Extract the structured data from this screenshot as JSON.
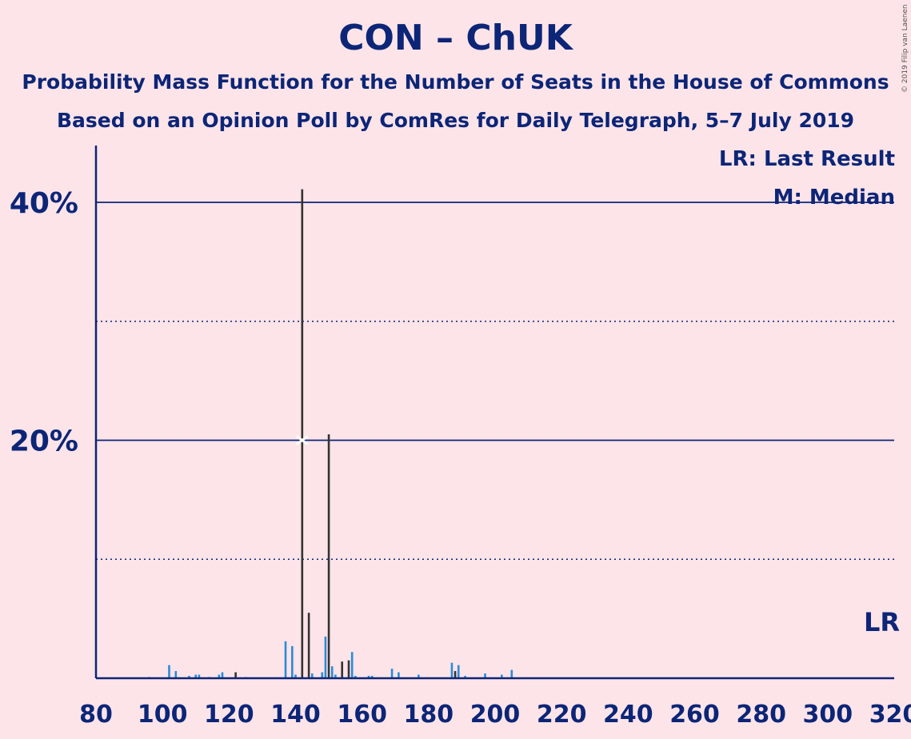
{
  "title": "CON – ChUK",
  "subtitle": "Probability Mass Function for the Number of Seats in the House of Commons",
  "subtitle2": "Based on an Opinion Poll by ComRes for Daily Telegraph, 5–7 July 2019",
  "copyright": "© 2019 Filip van Laenen",
  "legend": {
    "last_result": "LR: Last Result",
    "median": "M: Median"
  },
  "lr_marker": "LR",
  "colors": {
    "background": "#fde4e8",
    "text": "#0c2577",
    "bar_blue": "#2b8cd6",
    "bar_dark": "#333333"
  },
  "chart_data": {
    "type": "bar",
    "xlim": [
      80,
      320
    ],
    "ylim": [
      0,
      45
    ],
    "x_ticks": [
      "80",
      "100",
      "120",
      "140",
      "160",
      "180",
      "200",
      "220",
      "240",
      "260",
      "280",
      "300",
      "320"
    ],
    "y_ticks": [
      "20%",
      "40%"
    ],
    "gridlines_solid": [
      20,
      40
    ],
    "gridlines_dotted": [
      10,
      30
    ],
    "last_result_seats": 317,
    "median_seats": 142,
    "median_value": 20,
    "bars": [
      {
        "x": 96,
        "v": 0.1,
        "c": "blue"
      },
      {
        "x": 102,
        "v": 1.1,
        "c": "blue"
      },
      {
        "x": 104,
        "v": 0.6,
        "c": "blue"
      },
      {
        "x": 108,
        "v": 0.2,
        "c": "blue"
      },
      {
        "x": 110,
        "v": 0.3,
        "c": "blue"
      },
      {
        "x": 111,
        "v": 0.3,
        "c": "blue"
      },
      {
        "x": 114,
        "v": 0.1,
        "c": "blue"
      },
      {
        "x": 117,
        "v": 0.3,
        "c": "blue"
      },
      {
        "x": 118,
        "v": 0.5,
        "c": "blue"
      },
      {
        "x": 122,
        "v": 0.5,
        "c": "dark"
      },
      {
        "x": 125,
        "v": 0.1,
        "c": "blue"
      },
      {
        "x": 137,
        "v": 3.1,
        "c": "blue"
      },
      {
        "x": 139,
        "v": 2.7,
        "c": "blue"
      },
      {
        "x": 140,
        "v": 0.3,
        "c": "blue"
      },
      {
        "x": 142,
        "v": 41.1,
        "c": "dark"
      },
      {
        "x": 144,
        "v": 5.5,
        "c": "dark"
      },
      {
        "x": 145,
        "v": 0.4,
        "c": "blue"
      },
      {
        "x": 148,
        "v": 0.5,
        "c": "blue"
      },
      {
        "x": 149,
        "v": 3.5,
        "c": "blue"
      },
      {
        "x": 150,
        "v": 20.5,
        "c": "dark"
      },
      {
        "x": 151,
        "v": 1.0,
        "c": "blue"
      },
      {
        "x": 152,
        "v": 0.3,
        "c": "blue"
      },
      {
        "x": 154,
        "v": 1.4,
        "c": "dark"
      },
      {
        "x": 156,
        "v": 1.5,
        "c": "dark"
      },
      {
        "x": 157,
        "v": 2.2,
        "c": "blue"
      },
      {
        "x": 158,
        "v": 0.2,
        "c": "blue"
      },
      {
        "x": 162,
        "v": 0.2,
        "c": "blue"
      },
      {
        "x": 163,
        "v": 0.2,
        "c": "blue"
      },
      {
        "x": 169,
        "v": 0.8,
        "c": "blue"
      },
      {
        "x": 171,
        "v": 0.5,
        "c": "blue"
      },
      {
        "x": 177,
        "v": 0.3,
        "c": "blue"
      },
      {
        "x": 187,
        "v": 1.3,
        "c": "blue"
      },
      {
        "x": 188,
        "v": 0.6,
        "c": "dark"
      },
      {
        "x": 189,
        "v": 1.1,
        "c": "blue"
      },
      {
        "x": 191,
        "v": 0.2,
        "c": "blue"
      },
      {
        "x": 197,
        "v": 0.4,
        "c": "blue"
      },
      {
        "x": 202,
        "v": 0.3,
        "c": "blue"
      },
      {
        "x": 205,
        "v": 0.7,
        "c": "blue"
      }
    ]
  }
}
